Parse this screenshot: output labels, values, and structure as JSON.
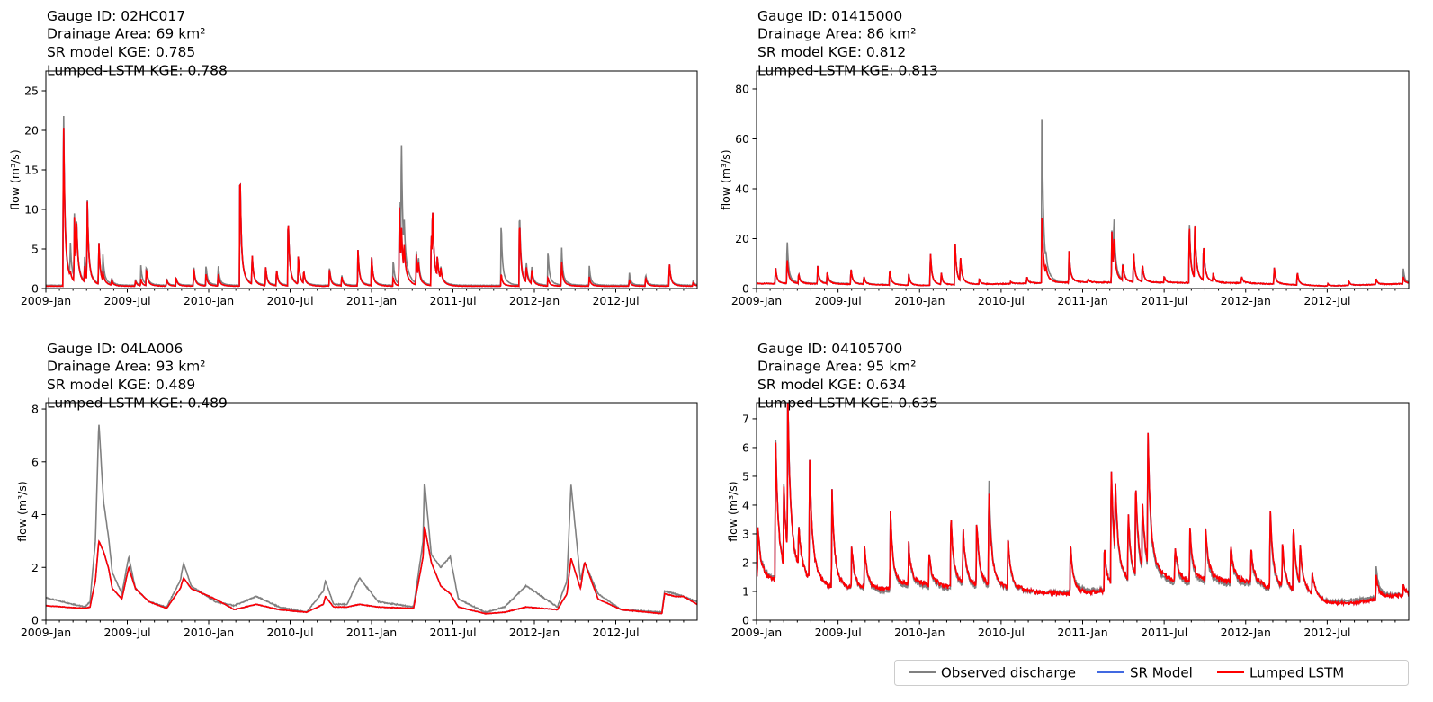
{
  "legend": {
    "items": [
      {
        "label": "Observed discharge",
        "color": "#808080"
      },
      {
        "label": "SR Model",
        "color": "#4169e1"
      },
      {
        "label": "Lumped LSTM",
        "color": "#ff0000"
      }
    ]
  },
  "chart_data": [
    {
      "type": "line",
      "title_lines": [
        "Gauge ID: 02HC017",
        "Drainage Area: 69 km²",
        "SR model KGE: 0.785",
        "Lumped-LSTM KGE: 0.788"
      ],
      "ylabel": "flow (m³/s)",
      "x_unit": "months since 2009-Jan",
      "xlim": [
        0,
        48
      ],
      "xticks": [
        0,
        6,
        12,
        18,
        24,
        30,
        36,
        42
      ],
      "xtick_labels": [
        "2009-Jan",
        "2009-Jul",
        "2010-Jan",
        "2010-Jul",
        "2011-Jan",
        "2011-Jul",
        "2012-Jan",
        "2012-Jul"
      ],
      "ylim": [
        0,
        27.5
      ],
      "yticks": [
        0,
        5,
        10,
        15,
        20,
        25
      ],
      "ytick_labels": [
        "0",
        "5",
        "10",
        "15",
        "20",
        "25"
      ],
      "mode": "peaks",
      "recession_days": 2.5,
      "baseline": [
        [
          0,
          0.4,
          0.3
        ],
        [
          24,
          0.4,
          0.3
        ],
        [
          48,
          0.4,
          0.3
        ]
      ],
      "peaks_month_obs_lstm": [
        [
          1.3,
          25,
          23.3
        ],
        [
          1.8,
          4.7,
          1
        ],
        [
          2.1,
          8.7,
          8.7
        ],
        [
          2.25,
          6.8,
          6.8
        ],
        [
          2.85,
          3.7,
          2.5
        ],
        [
          3.05,
          10.8,
          10.8
        ],
        [
          3.9,
          6,
          6
        ],
        [
          4.2,
          3.7,
          1.5
        ],
        [
          4.85,
          1.2,
          1
        ],
        [
          6.6,
          1.2,
          1
        ],
        [
          7.0,
          3,
          1.2
        ],
        [
          7.4,
          2.8,
          2.6
        ],
        [
          8.9,
          1.3,
          1.2
        ],
        [
          9.6,
          1.4,
          1.4
        ],
        [
          10.9,
          2.8,
          2.6
        ],
        [
          11.8,
          3.1,
          2
        ],
        [
          12.7,
          3.1,
          2
        ],
        [
          14.3,
          16.5,
          16.5
        ],
        [
          15.2,
          4.3,
          4.3
        ],
        [
          16.2,
          2.8,
          2.8
        ],
        [
          17.0,
          2.6,
          2.6
        ],
        [
          17.85,
          9.8,
          9.8
        ],
        [
          18.6,
          4.2,
          4.2
        ],
        [
          19.0,
          2,
          2
        ],
        [
          20.9,
          2.8,
          2.6
        ],
        [
          21.8,
          1.8,
          1.6
        ],
        [
          23.0,
          5.1,
          5.1
        ],
        [
          24.0,
          4.5,
          4.5
        ],
        [
          25.6,
          3.9,
          1.5
        ],
        [
          26.05,
          11,
          10.5
        ],
        [
          26.2,
          18.2,
          6
        ],
        [
          26.4,
          5,
          4
        ],
        [
          27.3,
          4.5,
          4.2
        ],
        [
          27.45,
          3,
          2.5
        ],
        [
          28.4,
          7.8,
          7.8
        ],
        [
          28.5,
          8.1,
          8.1
        ],
        [
          28.85,
          3,
          3
        ],
        [
          29.1,
          2,
          1.8
        ],
        [
          33.55,
          8.9,
          2
        ],
        [
          34.9,
          10.8,
          9.6
        ],
        [
          35.4,
          3,
          2.5
        ],
        [
          35.8,
          2.6,
          2.2
        ],
        [
          37.0,
          5.1,
          1.5
        ],
        [
          38.0,
          5.7,
          3.7
        ],
        [
          40.05,
          2.9,
          1.5
        ],
        [
          43.0,
          2.1,
          1.2
        ],
        [
          44.2,
          1.9,
          1.5
        ],
        [
          45.95,
          3.4,
          3.4
        ],
        [
          47.7,
          1.0,
          0.8
        ]
      ]
    },
    {
      "type": "line",
      "title_lines": [
        "Gauge ID: 01415000",
        "Drainage Area: 86 km²",
        "SR model KGE: 0.812",
        "Lumped-LSTM KGE: 0.813"
      ],
      "ylabel": "flow (m³/s)",
      "x_unit": "months since 2009-Jan",
      "xlim": [
        0,
        48
      ],
      "xticks": [
        0,
        6,
        12,
        18,
        24,
        30,
        36,
        42
      ],
      "xtick_labels": [
        "2009-Jan",
        "2009-Jul",
        "2010-Jan",
        "2010-Jul",
        "2011-Jan",
        "2011-Jul",
        "2012-Jan",
        "2012-Jul"
      ],
      "ylim": [
        0,
        87.2
      ],
      "yticks": [
        0,
        20,
        40,
        60,
        80
      ],
      "ytick_labels": [
        "0",
        "20",
        "40",
        "60",
        "80"
      ],
      "mode": "peaks",
      "recession_days": 2.5,
      "baseline": [
        [
          0,
          2,
          2
        ],
        [
          6,
          2,
          1.8
        ],
        [
          12,
          1.2,
          1.2
        ],
        [
          24,
          2.5,
          2.5
        ],
        [
          36,
          2.2,
          2.2
        ],
        [
          42,
          1,
          1
        ],
        [
          48,
          2,
          2
        ]
      ],
      "peaks_month_obs_lstm": [
        [
          1.4,
          9,
          9
        ],
        [
          2.25,
          21.5,
          13
        ],
        [
          3.1,
          6,
          6
        ],
        [
          4.5,
          9,
          9
        ],
        [
          5.2,
          7,
          7
        ],
        [
          6.95,
          8.5,
          8.5
        ],
        [
          7.9,
          5,
          5
        ],
        [
          9.8,
          8,
          8
        ],
        [
          11.2,
          6,
          6
        ],
        [
          12.8,
          15.5,
          15.5
        ],
        [
          13.6,
          6,
          6
        ],
        [
          14.6,
          21.5,
          21.5
        ],
        [
          15.0,
          12,
          12
        ],
        [
          16.4,
          4,
          4
        ],
        [
          18.7,
          3,
          3
        ],
        [
          19.9,
          5,
          5
        ],
        [
          21.0,
          80,
          32.8
        ],
        [
          21.3,
          6,
          6
        ],
        [
          23.0,
          15.5,
          15.5
        ],
        [
          24.4,
          4,
          4
        ],
        [
          26.15,
          23.5,
          23
        ],
        [
          26.3,
          26,
          17
        ],
        [
          26.95,
          10,
          10
        ],
        [
          27.75,
          15,
          15
        ],
        [
          28.4,
          10,
          10
        ],
        [
          30.0,
          5,
          5
        ],
        [
          31.85,
          30,
          28
        ],
        [
          32.25,
          26,
          26
        ],
        [
          32.9,
          18,
          18
        ],
        [
          33.6,
          6,
          6
        ],
        [
          35.7,
          5,
          5
        ],
        [
          38.1,
          9,
          9
        ],
        [
          39.8,
          7,
          7
        ],
        [
          42.05,
          2,
          2
        ],
        [
          43.6,
          3,
          3
        ],
        [
          45.6,
          4,
          4
        ],
        [
          47.6,
          8.5,
          5
        ]
      ]
    },
    {
      "type": "line",
      "title_lines": [
        "Gauge ID: 04LA006",
        "Drainage Area: 93 km²",
        "SR model KGE: 0.489",
        "Lumped-LSTM KGE: 0.489"
      ],
      "ylabel": "flow (m³/s)",
      "x_unit": "months since 2009-Jan",
      "xlim": [
        0,
        48
      ],
      "xticks": [
        0,
        6,
        12,
        18,
        24,
        30,
        36,
        42
      ],
      "xtick_labels": [
        "2009-Jan",
        "2009-Jul",
        "2010-Jan",
        "2010-Jul",
        "2011-Jan",
        "2011-Jul",
        "2012-Jan",
        "2012-Jul"
      ],
      "ylim": [
        0,
        8.24
      ],
      "yticks": [
        0,
        2,
        4,
        6,
        8
      ],
      "ytick_labels": [
        "0",
        "2",
        "4",
        "6",
        "8"
      ],
      "mode": "points",
      "points_month_obs_lstm": [
        [
          0,
          0.85,
          0.55
        ],
        [
          2.9,
          0.5,
          0.45
        ],
        [
          3.25,
          0.7,
          0.5
        ],
        [
          3.65,
          3,
          1.5
        ],
        [
          3.9,
          7.5,
          3.0
        ],
        [
          4.25,
          4.5,
          2.6
        ],
        [
          4.6,
          3.2,
          2.0
        ],
        [
          4.9,
          1.8,
          1.2
        ],
        [
          5.6,
          1.0,
          0.8
        ],
        [
          6.1,
          2.4,
          2.0
        ],
        [
          6.6,
          1.2,
          1.2
        ],
        [
          7.6,
          0.7,
          0.7
        ],
        [
          8.9,
          0.5,
          0.45
        ],
        [
          9.9,
          1.5,
          1.2
        ],
        [
          10.15,
          2.15,
          1.6
        ],
        [
          10.7,
          1.3,
          1.2
        ],
        [
          12.5,
          0.7,
          0.8
        ],
        [
          13.9,
          0.55,
          0.4
        ],
        [
          15.5,
          0.9,
          0.6
        ],
        [
          17.2,
          0.5,
          0.4
        ],
        [
          19.2,
          0.3,
          0.3
        ],
        [
          20.45,
          1.1,
          0.6
        ],
        [
          20.6,
          1.5,
          0.9
        ],
        [
          21.2,
          0.6,
          0.5
        ],
        [
          22.2,
          0.6,
          0.5
        ],
        [
          23.1,
          1.6,
          0.6
        ],
        [
          24.5,
          0.7,
          0.5
        ],
        [
          27.1,
          0.5,
          0.45
        ],
        [
          27.8,
          3.0,
          2.4
        ],
        [
          27.9,
          5.3,
          3.6
        ],
        [
          28.4,
          2.5,
          2.2
        ],
        [
          29.1,
          2.0,
          1.3
        ],
        [
          29.8,
          2.4,
          1.0
        ],
        [
          30.4,
          0.8,
          0.5
        ],
        [
          32.4,
          0.3,
          0.25
        ],
        [
          33.8,
          0.5,
          0.3
        ],
        [
          35.4,
          1.3,
          0.5
        ],
        [
          37.7,
          0.5,
          0.4
        ],
        [
          38.4,
          1.5,
          1.0
        ],
        [
          38.7,
          5.15,
          2.35
        ],
        [
          39.4,
          1.5,
          1.2
        ],
        [
          39.7,
          2.2,
          2.2
        ],
        [
          40.7,
          1.0,
          0.8
        ],
        [
          42.4,
          0.4,
          0.4
        ],
        [
          45.4,
          0.3,
          0.25
        ],
        [
          45.6,
          1.1,
          1.0
        ],
        [
          46.4,
          1.0,
          0.9
        ],
        [
          47.0,
          0.9,
          0.9
        ],
        [
          48,
          0.7,
          0.6
        ]
      ]
    },
    {
      "type": "line",
      "title_lines": [
        "Gauge ID: 04105700",
        "Drainage Area: 95 km²",
        "SR model KGE: 0.634",
        "Lumped-LSTM KGE: 0.635"
      ],
      "ylabel": "flow (m³/s)",
      "x_unit": "months since 2009-Jan",
      "xlim": [
        0,
        48
      ],
      "xticks": [
        0,
        6,
        12,
        18,
        24,
        30,
        36,
        42
      ],
      "xtick_labels": [
        "2009-Jan",
        "2009-Jul",
        "2010-Jan",
        "2010-Jul",
        "2011-Jan",
        "2011-Jul",
        "2012-Jan",
        "2012-Jul"
      ],
      "ylim": [
        0,
        7.56
      ],
      "yticks": [
        0,
        1,
        2,
        3,
        4,
        5,
        6,
        7
      ],
      "ytick_labels": [
        "0",
        "1",
        "2",
        "3",
        "4",
        "5",
        "6",
        "7"
      ],
      "mode": "peaks",
      "recession_days": 5,
      "baseline": [
        [
          0,
          1.6,
          1.5
        ],
        [
          3,
          1.2,
          1.2
        ],
        [
          6,
          1.0,
          1.0
        ],
        [
          9,
          0.9,
          1.0
        ],
        [
          12,
          1.1,
          1.2
        ],
        [
          18,
          0.9,
          1.0
        ],
        [
          24,
          1.0,
          0.9
        ],
        [
          30,
          1.2,
          1.3
        ],
        [
          36,
          1.2,
          1.3
        ],
        [
          40,
          0.8,
          0.8
        ],
        [
          42,
          0.6,
          0.55
        ],
        [
          44,
          0.7,
          0.6
        ],
        [
          48,
          0.9,
          0.9
        ]
      ],
      "peaks_month_obs_lstm": [
        [
          0.1,
          3.3,
          3.3
        ],
        [
          1.4,
          6.6,
          6.5
        ],
        [
          2.0,
          4.2,
          4.1
        ],
        [
          2.3,
          6.9,
          6.8
        ],
        [
          3.1,
          2.7,
          2.7
        ],
        [
          3.9,
          5.5,
          5.5
        ],
        [
          5.55,
          4.4,
          4.4
        ],
        [
          7.0,
          2.5,
          2.5
        ],
        [
          7.95,
          2.5,
          2.5
        ],
        [
          9.85,
          3.8,
          3.8
        ],
        [
          11.2,
          2.6,
          2.6
        ],
        [
          12.7,
          2.3,
          2.3
        ],
        [
          14.3,
          3.7,
          3.7
        ],
        [
          15.2,
          3.1,
          3.1
        ],
        [
          16.2,
          3.4,
          3.4
        ],
        [
          17.1,
          4.9,
          4.4
        ],
        [
          18.5,
          2.8,
          2.8
        ],
        [
          23.1,
          2.7,
          2.7
        ],
        [
          25.6,
          2.6,
          2.6
        ],
        [
          26.1,
          5.0,
          5.4
        ],
        [
          26.4,
          3.5,
          3.7
        ],
        [
          27.35,
          3.3,
          3.5
        ],
        [
          27.9,
          4.2,
          4.5
        ],
        [
          28.4,
          3.4,
          3.6
        ],
        [
          28.8,
          5.6,
          5.95
        ],
        [
          30.8,
          2.5,
          2.6
        ],
        [
          31.9,
          3.0,
          3.2
        ],
        [
          33.05,
          3.0,
          3.2
        ],
        [
          34.9,
          2.5,
          2.6
        ],
        [
          36.4,
          2.4,
          2.5
        ],
        [
          37.8,
          3.7,
          4.0
        ],
        [
          38.7,
          2.4,
          2.5
        ],
        [
          39.5,
          3.1,
          3.3
        ],
        [
          40.0,
          2.2,
          2.3
        ],
        [
          40.9,
          1.5,
          1.5
        ],
        [
          45.6,
          1.9,
          1.6
        ],
        [
          47.6,
          1.2,
          1.2
        ]
      ]
    }
  ]
}
